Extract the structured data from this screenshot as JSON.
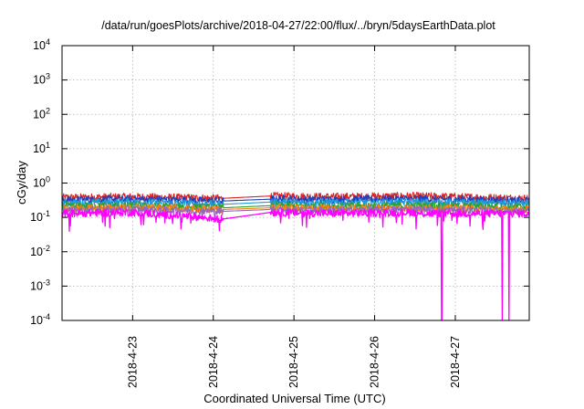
{
  "chart_data": {
    "type": "line",
    "title": "/data/run/goesPlots/archive/2018-04-27/22:00/flux/../bryn/5daysEarthData.plot",
    "xlabel": "Coordinated Universal Time (UTC)",
    "ylabel": "cGy/day",
    "y_scale": "log",
    "ylim": [
      0.0001,
      10000
    ],
    "xlim": [
      "2018-04-22 03:00",
      "2018-04-27 22:00"
    ],
    "grid": true,
    "x_ticks": [
      {
        "label": "2018-4-23",
        "x": "2018-04-23 00:00"
      },
      {
        "label": "2018-4-24",
        "x": "2018-04-24 00:00"
      },
      {
        "label": "2018-4-25",
        "x": "2018-04-25 00:00"
      },
      {
        "label": "2018-4-26",
        "x": "2018-04-26 00:00"
      },
      {
        "label": "2018-4-27",
        "x": "2018-04-27 00:00"
      }
    ],
    "y_ticks": [
      {
        "base": "10",
        "exp": "-4",
        "value": 0.0001
      },
      {
        "base": "10",
        "exp": "-3",
        "value": 0.001
      },
      {
        "base": "10",
        "exp": "-2",
        "value": 0.01
      },
      {
        "base": "10",
        "exp": "-1",
        "value": 0.1
      },
      {
        "base": "10",
        "exp": "0",
        "value": 1
      },
      {
        "base": "10",
        "exp": "1",
        "value": 10
      },
      {
        "base": "10",
        "exp": "2",
        "value": 100
      },
      {
        "base": "10",
        "exp": "3",
        "value": 1000
      },
      {
        "base": "10",
        "exp": "4",
        "value": 10000
      }
    ],
    "data_gap": [
      "2018-04-24 03:00",
      "2018-04-24 17:00"
    ],
    "series": [
      {
        "color": "#d62728",
        "level": 0.38,
        "x": [
          "2018-04-22 03:00",
          "2018-04-23 00:00",
          "2018-04-24 03:00",
          "2018-04-24 17:00",
          "2018-04-25 12:00",
          "2018-04-26 12:00",
          "2018-04-27 22:00"
        ],
        "y": [
          0.38,
          0.4,
          0.36,
          0.42,
          0.4,
          0.42,
          0.36
        ]
      },
      {
        "color": "#1f3fbf",
        "level": 0.32,
        "x": [
          "2018-04-22 03:00",
          "2018-04-23 00:00",
          "2018-04-24 03:00",
          "2018-04-24 17:00",
          "2018-04-25 12:00",
          "2018-04-26 12:00",
          "2018-04-27 22:00"
        ],
        "y": [
          0.32,
          0.34,
          0.3,
          0.34,
          0.33,
          0.35,
          0.3
        ]
      },
      {
        "color": "#1f9bd7",
        "level": 0.26,
        "x": [
          "2018-04-22 03:00",
          "2018-04-23 00:00",
          "2018-04-24 03:00",
          "2018-04-24 17:00",
          "2018-04-25 12:00",
          "2018-04-26 12:00",
          "2018-04-27 22:00"
        ],
        "y": [
          0.26,
          0.28,
          0.24,
          0.28,
          0.27,
          0.28,
          0.25
        ]
      },
      {
        "color": "#2ca02c",
        "level": 0.21,
        "x": [
          "2018-04-22 03:00",
          "2018-04-23 00:00",
          "2018-04-24 03:00",
          "2018-04-24 17:00",
          "2018-04-25 12:00",
          "2018-04-26 12:00",
          "2018-04-27 22:00"
        ],
        "y": [
          0.21,
          0.22,
          0.19,
          0.22,
          0.21,
          0.22,
          0.2
        ]
      },
      {
        "color": "#ff7f0e",
        "level": 0.18,
        "x": [
          "2018-04-22 03:00",
          "2018-04-23 00:00",
          "2018-04-24 03:00",
          "2018-04-24 17:00",
          "2018-04-25 12:00",
          "2018-04-26 12:00",
          "2018-04-27 22:00"
        ],
        "y": [
          0.18,
          0.19,
          0.17,
          0.19,
          0.18,
          0.19,
          0.17
        ]
      },
      {
        "color": "#9467bd",
        "level": 0.16,
        "x": [
          "2018-04-22 03:00",
          "2018-04-23 00:00",
          "2018-04-24 03:00",
          "2018-04-24 17:00",
          "2018-04-25 12:00",
          "2018-04-26 12:00",
          "2018-04-27 22:00"
        ],
        "y": [
          0.16,
          0.17,
          0.15,
          0.17,
          0.16,
          0.17,
          0.15
        ]
      },
      {
        "color": "#ff00ff",
        "level": 0.13,
        "x": [
          "2018-04-22 03:00",
          "2018-04-23 00:00",
          "2018-04-24 03:00",
          "2018-04-24 17:00",
          "2018-04-25 12:00",
          "2018-04-26 12:00",
          "2018-04-26 20:00",
          "2018-04-27 14:00",
          "2018-04-27 16:00",
          "2018-04-27 22:00"
        ],
        "y": [
          0.13,
          0.14,
          0.09,
          0.14,
          0.13,
          0.14,
          0.0001,
          0.0001,
          0.0001,
          0.11
        ]
      }
    ]
  }
}
